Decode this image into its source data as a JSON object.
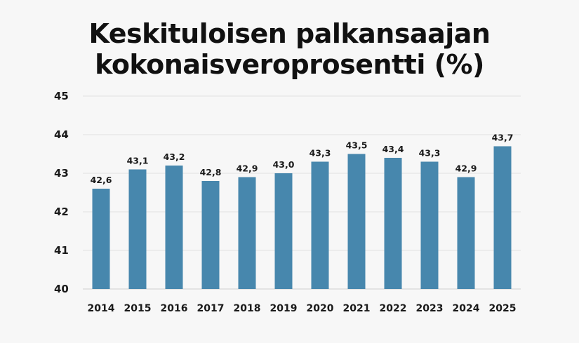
{
  "chart_data": {
    "type": "bar",
    "title_lines": [
      "Keskituloisen palkansaajan",
      "kokonaisveroprosentti (%)"
    ],
    "xlabel": "",
    "ylabel": "",
    "categories": [
      "2014",
      "2015",
      "2016",
      "2017",
      "2018",
      "2019",
      "2020",
      "2021",
      "2022",
      "2023",
      "2024",
      "2025"
    ],
    "values": [
      42.6,
      43.1,
      43.2,
      42.8,
      42.9,
      43.0,
      43.3,
      43.5,
      43.4,
      43.3,
      42.9,
      43.7
    ],
    "value_labels": [
      "42,6",
      "43,1",
      "43,2",
      "42,8",
      "42,9",
      "43,0",
      "43,3",
      "43,5",
      "43,4",
      "43,3",
      "42,9",
      "43,7"
    ],
    "ylim": [
      40,
      45
    ],
    "yticks": [
      "40",
      "41",
      "42",
      "43",
      "44",
      "45"
    ],
    "grid": true,
    "legend": "none",
    "colors": {
      "bar": "#4787ad",
      "grid": "#e2e2e2",
      "axis": "#cfcfcf",
      "background": "#f7f7f7"
    }
  }
}
